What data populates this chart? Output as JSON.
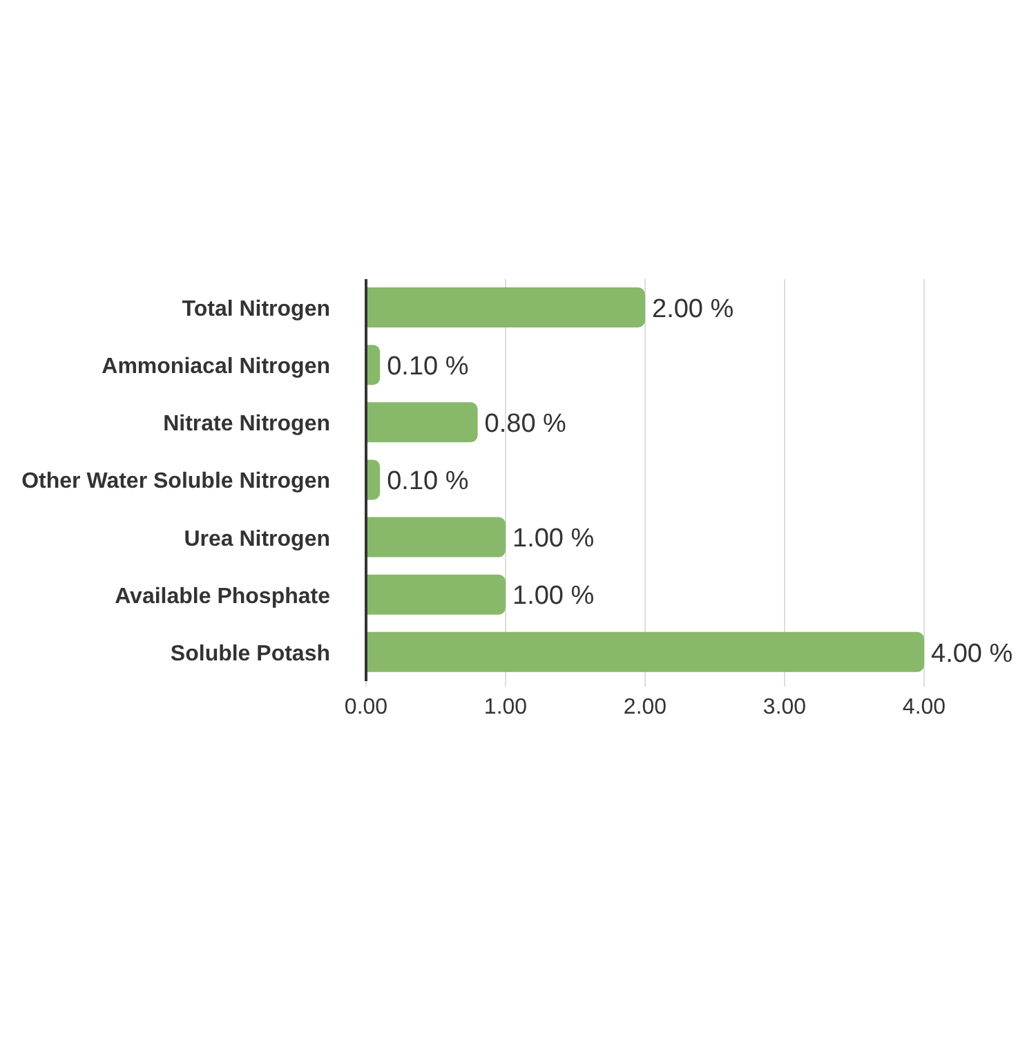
{
  "chart_data": {
    "type": "bar",
    "orientation": "horizontal",
    "categories": [
      "Total Nitrogen",
      "Ammoniacal Nitrogen",
      "Nitrate Nitrogen",
      "Other Water Soluble Nitrogen",
      "Urea Nitrogen",
      "Available Phosphate",
      "Soluble Potash"
    ],
    "values": [
      2,
      0.1,
      0.8,
      0.1,
      1,
      1,
      4
    ],
    "value_labels": [
      "2.00 %",
      "0.10 %",
      "0.80 %",
      "0.10 %",
      "1.00 %",
      "1.00 %",
      "4.00 %"
    ],
    "color": "#88b96a",
    "xlim": [
      0,
      4
    ],
    "xticks": [
      {
        "value": 0,
        "label": "0.00"
      },
      {
        "value": 1,
        "label": "1.00"
      },
      {
        "value": 2,
        "label": "2.00"
      },
      {
        "value": 3,
        "label": "3.00"
      },
      {
        "value": 4,
        "label": "4.00"
      }
    ],
    "grid": "x"
  }
}
